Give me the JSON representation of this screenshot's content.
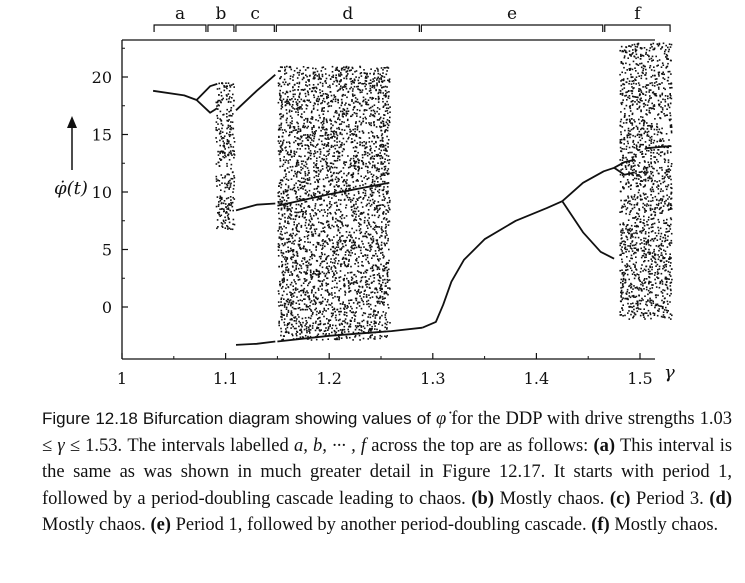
{
  "chart_data": {
    "type": "scatter",
    "title": "",
    "xlabel": "γ",
    "ylabel": "φ̇(t)",
    "xlim": [
      1.0,
      1.55
    ],
    "ylim": [
      -3.5,
      23.5
    ],
    "x_ticks": [
      1,
      1.1,
      1.2,
      1.3,
      1.4,
      1.5
    ],
    "y_ticks": [
      0,
      5,
      10,
      15,
      20
    ],
    "intervals": [
      {
        "label": "a",
        "range": [
          1.03,
          1.082
        ]
      },
      {
        "label": "b",
        "range": [
          1.082,
          1.109
        ]
      },
      {
        "label": "c",
        "range": [
          1.109,
          1.148
        ]
      },
      {
        "label": "d",
        "range": [
          1.148,
          1.288
        ]
      },
      {
        "label": "e",
        "range": [
          1.288,
          1.465
        ]
      },
      {
        "label": "f",
        "range": [
          1.465,
          1.53
        ]
      }
    ],
    "series": [
      {
        "kind": "curve",
        "points": [
          [
            1.03,
            18.8
          ],
          [
            1.06,
            18.4
          ],
          [
            1.072,
            18.0
          ]
        ]
      },
      {
        "kind": "curve",
        "points": [
          [
            1.072,
            18.0
          ],
          [
            1.085,
            19.2
          ],
          [
            1.092,
            19.4
          ]
        ]
      },
      {
        "kind": "curve",
        "points": [
          [
            1.072,
            18.0
          ],
          [
            1.085,
            16.9
          ],
          [
            1.092,
            17.3
          ]
        ]
      },
      {
        "kind": "curve",
        "points": [
          [
            1.11,
            8.4
          ],
          [
            1.13,
            8.9
          ],
          [
            1.148,
            9.0
          ]
        ]
      },
      {
        "kind": "curve",
        "points": [
          [
            1.11,
            17.1
          ],
          [
            1.13,
            18.8
          ],
          [
            1.148,
            20.2
          ]
        ]
      },
      {
        "kind": "curve",
        "points": [
          [
            1.11,
            -3.3
          ],
          [
            1.13,
            -3.2
          ],
          [
            1.148,
            -3.0
          ]
        ]
      },
      {
        "kind": "curve",
        "points": [
          [
            1.15,
            8.8
          ],
          [
            1.2,
            9.8
          ],
          [
            1.258,
            10.8
          ]
        ]
      },
      {
        "kind": "curve",
        "points": [
          [
            1.15,
            -3.0
          ],
          [
            1.2,
            -2.5
          ],
          [
            1.26,
            -2.1
          ],
          [
            1.29,
            -1.8
          ]
        ]
      },
      {
        "kind": "curve",
        "points": [
          [
            1.29,
            -1.8
          ],
          [
            1.303,
            -1.3
          ],
          [
            1.31,
            0.2
          ],
          [
            1.318,
            2.2
          ],
          [
            1.33,
            4.1
          ],
          [
            1.35,
            5.9
          ],
          [
            1.38,
            7.5
          ],
          [
            1.41,
            8.6
          ],
          [
            1.425,
            9.2
          ]
        ]
      },
      {
        "kind": "curve",
        "points": [
          [
            1.425,
            9.2
          ],
          [
            1.445,
            10.8
          ],
          [
            1.465,
            11.8
          ],
          [
            1.475,
            12.1
          ]
        ]
      },
      {
        "kind": "curve",
        "points": [
          [
            1.425,
            9.2
          ],
          [
            1.445,
            6.5
          ],
          [
            1.462,
            4.8
          ],
          [
            1.475,
            4.2
          ]
        ]
      },
      {
        "kind": "curve",
        "points": [
          [
            1.475,
            12.1
          ],
          [
            1.485,
            12.6
          ],
          [
            1.495,
            12.8
          ]
        ]
      },
      {
        "kind": "curve",
        "points": [
          [
            1.475,
            12.1
          ],
          [
            1.485,
            11.5
          ],
          [
            1.495,
            11.7
          ]
        ]
      },
      {
        "kind": "curve",
        "points": [
          [
            1.505,
            13.8
          ],
          [
            1.53,
            14.0
          ]
        ]
      },
      {
        "kind": "band",
        "xrange": [
          1.09,
          1.108
        ],
        "yrange": [
          6.8,
          19.6
        ]
      },
      {
        "kind": "band",
        "xrange": [
          1.15,
          1.258
        ],
        "yrange": [
          -2.8,
          21.0
        ]
      },
      {
        "kind": "band",
        "xrange": [
          1.48,
          1.53
        ],
        "yrange": [
          -1.0,
          23.0
        ]
      }
    ]
  },
  "caption": {
    "figure_number": "Figure 12.18",
    "lead": "Bifurcation diagram showing values of",
    "symbol_phidot": "φ̇",
    "part1": "for the DDP with drive strengths 1.03 ≤",
    "gamma": "γ",
    "part2": "≤ 1.53. The intervals labelled",
    "labels_list": "a, b, ··· , f",
    "part3": "across the top are as follows:",
    "a_tag": "(a)",
    "a_text": "This interval is the same as was shown in much greater detail in Figure 12.17. It starts with period 1, followed by a period-doubling cascade leading to chaos.",
    "b_tag": "(b)",
    "b_text": "Mostly chaos.",
    "c_tag": "(c)",
    "c_text": "Period 3.",
    "d_tag": "(d)",
    "d_text": "Mostly chaos.",
    "e_tag": "(e)",
    "e_text": "Period 1, followed by another period-doubling cascade.",
    "f_tag": "(f)",
    "f_text": "Mostly chaos."
  }
}
